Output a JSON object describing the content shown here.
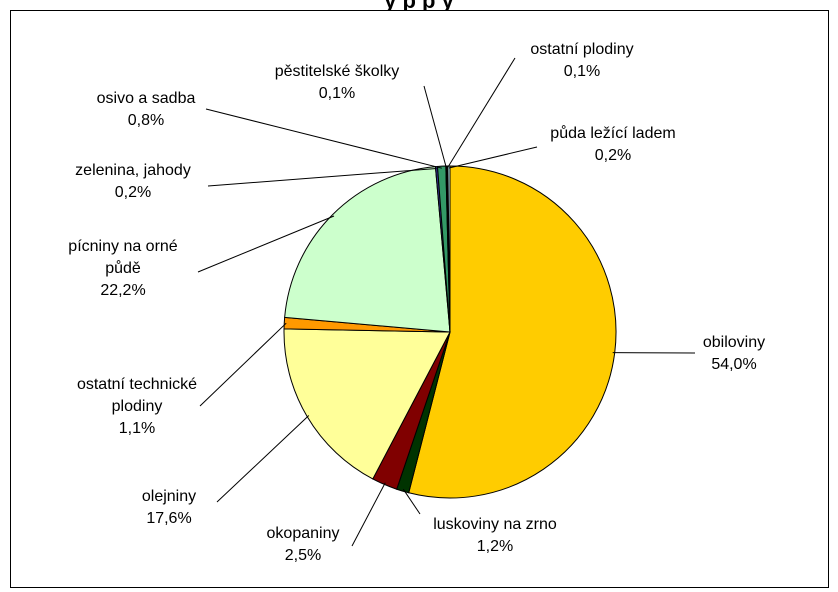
{
  "page": {
    "title_fragment": "y       p              p y"
  },
  "chart_data": {
    "type": "pie",
    "title": "",
    "start_angle_deg": 0,
    "direction": "clockwise",
    "slices": [
      {
        "name": "obiloviny",
        "percent_label": "54,0%",
        "value": 54.0,
        "color": "#FFCC00"
      },
      {
        "name": "luskoviny na zrno",
        "percent_label": "1,2%",
        "value": 1.2,
        "color": "#003300"
      },
      {
        "name": "okopaniny",
        "percent_label": "2,5%",
        "value": 2.5,
        "color": "#800000"
      },
      {
        "name": "olejniny",
        "percent_label": "17,6%",
        "value": 17.6,
        "color": "#FFFF99"
      },
      {
        "name": "ostatní technické plodiny",
        "percent_label": "1,1%",
        "value": 1.1,
        "color": "#FF9900"
      },
      {
        "name": "pícniny na orné půdě",
        "percent_label": "22,2%",
        "value": 22.2,
        "color": "#CCFFCC"
      },
      {
        "name": "zelenina, jahody",
        "percent_label": "0,2%",
        "value": 0.2,
        "color": "#333399"
      },
      {
        "name": "osivo a sadba",
        "percent_label": "0,8%",
        "value": 0.8,
        "color": "#339966"
      },
      {
        "name": "pěstitelské školky",
        "percent_label": "0,1%",
        "value": 0.1,
        "color": "#000080"
      },
      {
        "name": "ostatní plodiny",
        "percent_label": "0,1%",
        "value": 0.1,
        "color": "#FFFF00"
      },
      {
        "name": "půda ležící ladem",
        "percent_label": "0,2%",
        "value": 0.2,
        "color": "#CCFFFF"
      }
    ]
  }
}
